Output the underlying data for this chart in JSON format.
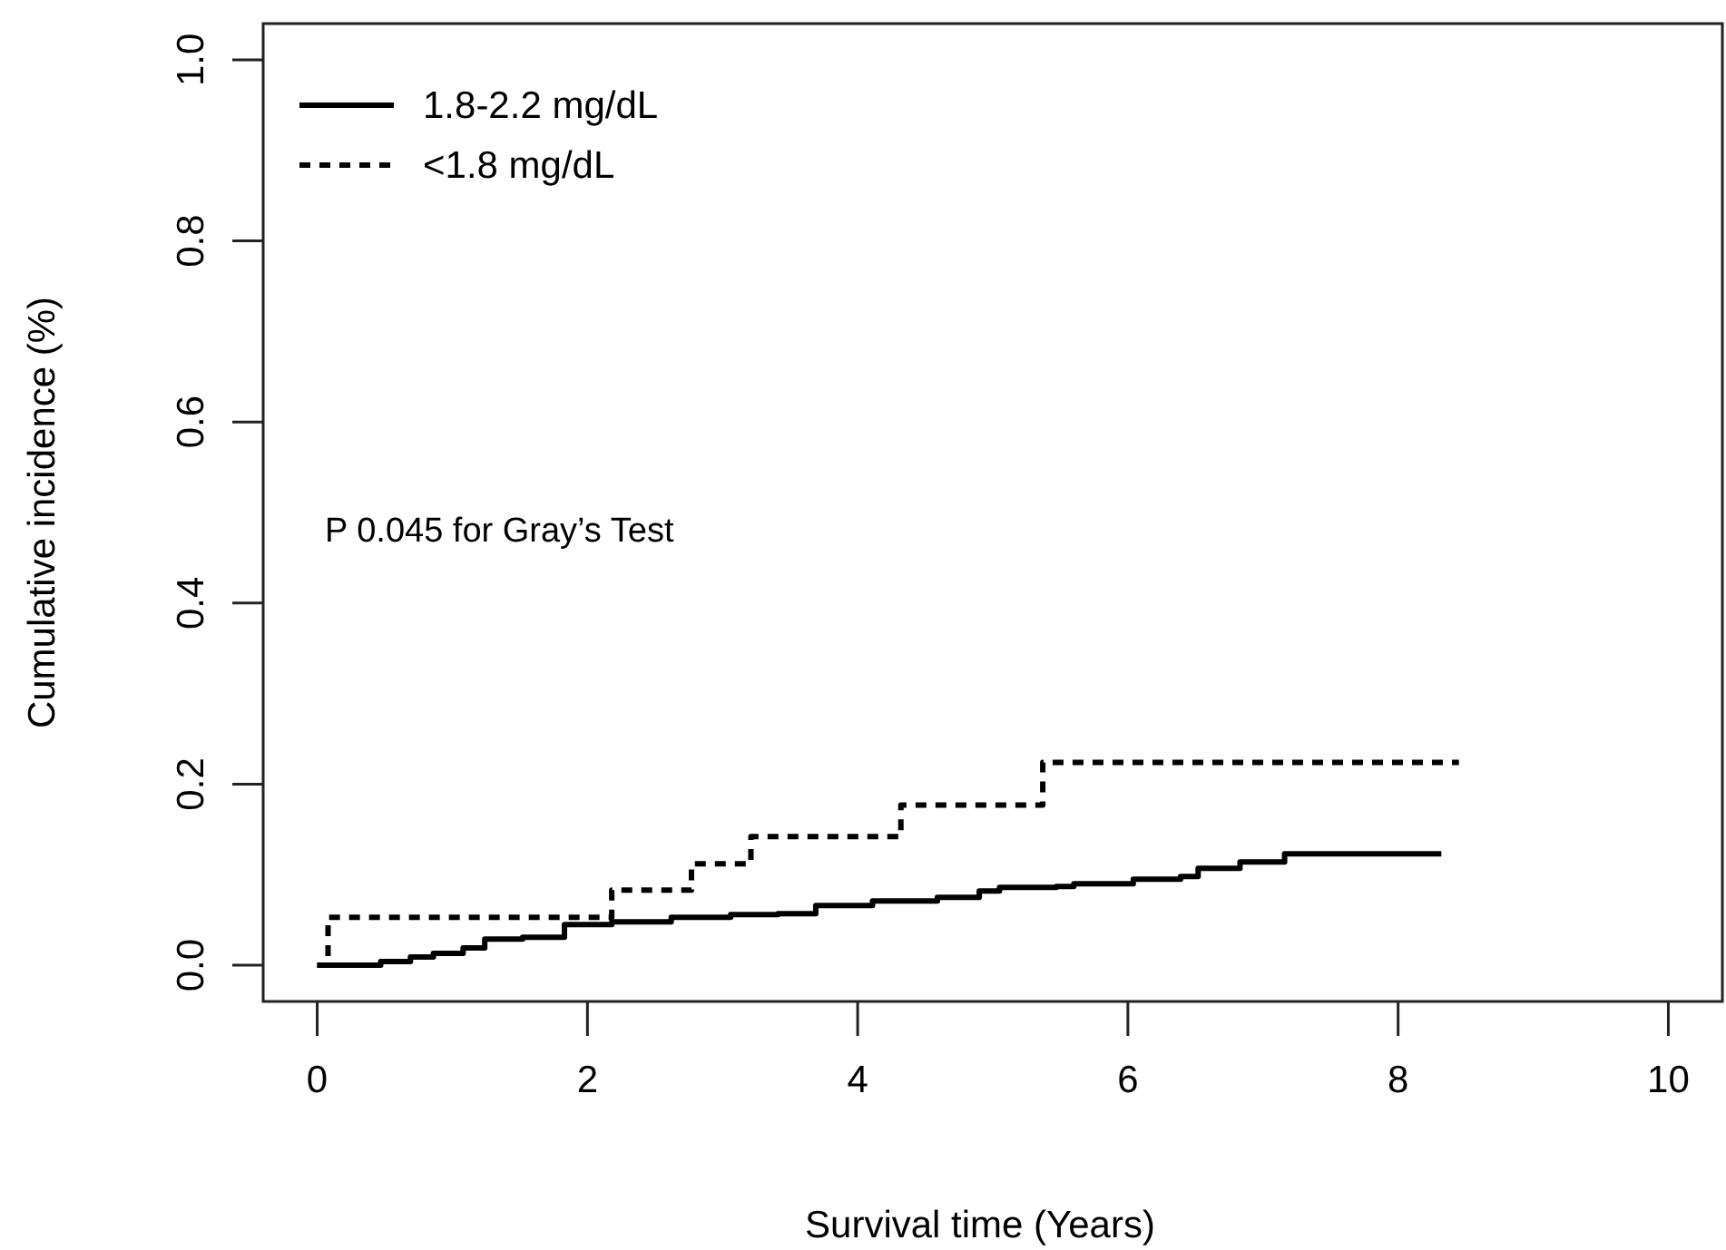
{
  "chart_data": {
    "type": "step",
    "xlabel": "Survival time (Years)",
    "ylabel": "Cumulative incidence (%)",
    "xlim": [
      -0.4,
      10.4
    ],
    "ylim": [
      -0.04,
      1.04
    ],
    "xticks": [
      0,
      2,
      4,
      6,
      8,
      10
    ],
    "yticks": [
      {
        "value": 0,
        "label": "0.0"
      },
      {
        "value": 0.2,
        "label": "0.2"
      },
      {
        "value": 0.4,
        "label": "0.4"
      },
      {
        "value": 0.6,
        "label": "0.6"
      },
      {
        "value": 0.8,
        "label": "0.8"
      },
      {
        "value": 1,
        "label": "1.0"
      }
    ],
    "grid": false,
    "legend": "top left",
    "annotations": [
      "P 0.045 for Gray’s Test"
    ],
    "series": [
      {
        "name": "1.8-2.2 mg/dL",
        "color": "#000000",
        "line_style": "solid",
        "x": [
          0,
          0.47,
          0.69,
          0.86,
          1.08,
          1.24,
          1.52,
          1.83,
          2.18,
          2.62,
          3.06,
          3.41,
          3.69,
          4.11,
          4.59,
          4.9,
          5.05,
          5.47,
          5.6,
          6.04,
          6.39,
          6.52,
          6.83,
          7.16,
          8.32
        ],
        "values": [
          0,
          0.004,
          0.009,
          0.013,
          0.019,
          0.029,
          0.031,
          0.045,
          0.048,
          0.053,
          0.056,
          0.057,
          0.066,
          0.071,
          0.075,
          0.082,
          0.086,
          0.087,
          0.09,
          0.095,
          0.098,
          0.107,
          0.114,
          0.123,
          0.123
        ]
      },
      {
        "name": "<1.8 mg/dL",
        "color": "#000000",
        "line_style": "dotted",
        "x": [
          0,
          0.08,
          2.18,
          2.77,
          3.21,
          4.32,
          5.37,
          8.45
        ],
        "values": [
          0,
          0.053,
          0.083,
          0.112,
          0.142,
          0.177,
          0.224,
          0.224
        ]
      }
    ]
  }
}
